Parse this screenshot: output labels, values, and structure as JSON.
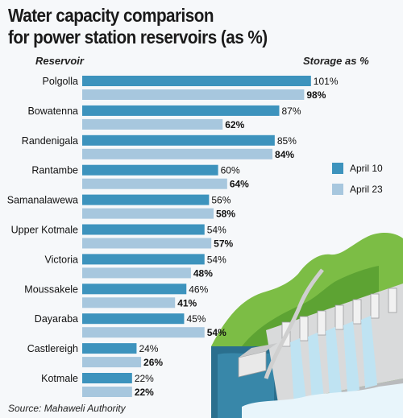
{
  "title_lines": [
    "Water capacity comparison",
    "for power station reservoirs (as %)"
  ],
  "column_headers": {
    "left": "Reservoir",
    "right": "Storage  as %"
  },
  "source": "Source: Mahaweli Authority",
  "colors": {
    "april10": "#3d93bd",
    "april23": "#a7c7de"
  },
  "chart_data": {
    "type": "bar",
    "orientation": "horizontal",
    "title": "Water capacity comparison for power station reservoirs (as %)",
    "ylabel": "Reservoir",
    "xlabel": "Storage  as %",
    "xlim": [
      0,
      101
    ],
    "grid": false,
    "legend_position": "right",
    "categories": [
      "Polgolla",
      "Bowatenna",
      "Randenigala",
      "Rantambe",
      "Samanalawewa",
      "Upper Kotmale",
      "Victoria",
      "Moussakele",
      "Dayaraba",
      "Castlereigh",
      "Kotmale"
    ],
    "series": [
      {
        "name": "April 10",
        "values": [
          101,
          87,
          85,
          60,
          56,
          54,
          54,
          46,
          45,
          24,
          22
        ],
        "labels": [
          "101%",
          "87%",
          "85%",
          "60%",
          "56%",
          "54%",
          "54%",
          "46%",
          "45%",
          "24%",
          "22%"
        ]
      },
      {
        "name": "April 23",
        "values": [
          98,
          62,
          84,
          64,
          58,
          57,
          48,
          41,
          54,
          26,
          22
        ],
        "labels": [
          "98%",
          "62%",
          "84%",
          "64%",
          "58%",
          "57%",
          "48%",
          "41%",
          "54%",
          "26%",
          "22%"
        ]
      }
    ]
  }
}
